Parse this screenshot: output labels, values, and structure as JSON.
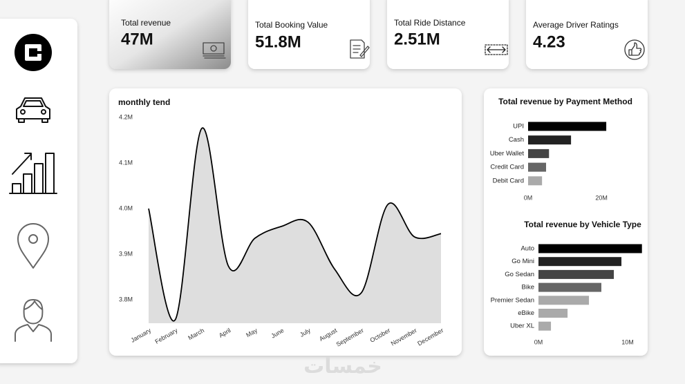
{
  "cards": [
    {
      "title": "Total revenue",
      "value": "47M"
    },
    {
      "title": "Total Booking Value",
      "value": "51.8M"
    },
    {
      "title": "Total Ride Distance",
      "value": "2.51M"
    },
    {
      "title": "Average Driver Ratings",
      "value": "4.23"
    }
  ],
  "watermark": "خمسات",
  "chart_data": [
    {
      "type": "line",
      "title": "monthly tend",
      "categories": [
        "January",
        "February",
        "March",
        "April",
        "May",
        "June",
        "July",
        "August",
        "September",
        "October",
        "November",
        "December"
      ],
      "series": [
        {
          "name": "Total revenue",
          "color": "#000000",
          "fill": "#dedede",
          "values": [
            4000000,
            3756000,
            4176000,
            3874000,
            3935000,
            3961000,
            3970000,
            3867000,
            3815000,
            4009000,
            3938000,
            3945000
          ]
        }
      ],
      "ylim": [
        3748500,
        4200000
      ],
      "yticks": [
        {
          "value": 3800000,
          "label": "3.8M"
        },
        {
          "value": 3900000,
          "label": "3.9M"
        },
        {
          "value": 4000000,
          "label": "4.0M"
        },
        {
          "value": 4100000,
          "label": "4.1M"
        },
        {
          "value": 4200000,
          "label": "4.2M"
        }
      ],
      "grid": false
    },
    {
      "type": "bar",
      "orientation": "horizontal",
      "title": "Total revenue by Payment Method",
      "categories": [
        "UPI",
        "Cash",
        "Uber Wallet",
        "Credit Card",
        "Debit Card"
      ],
      "values": [
        21300000,
        11700000,
        5700000,
        4900000,
        3800000
      ],
      "colors": [
        "#000000",
        "#222222",
        "#444444",
        "#666666",
        "#aaaaaa"
      ],
      "xlim": [
        0,
        27500000
      ],
      "xticks": [
        {
          "value": 0,
          "label": "0M"
        },
        {
          "value": 20000000,
          "label": "20M"
        }
      ]
    },
    {
      "type": "bar",
      "orientation": "horizontal",
      "title": "Total revenue by Vehicle Type",
      "categories": [
        "Auto",
        "Go Mini",
        "Go Sedan",
        "Bike",
        "Premier Sedan",
        "eBike",
        "Uber XL"
      ],
      "values": [
        11600000,
        9300000,
        8450000,
        7050000,
        5660000,
        3260000,
        1400000
      ],
      "colors": [
        "#000000",
        "#222222",
        "#444444",
        "#666666",
        "#aaaaaa",
        "#aaaaaa",
        "#aaaaaa"
      ],
      "xlim": [
        0,
        11700000
      ],
      "xticks": [
        {
          "value": 0,
          "label": "0M"
        },
        {
          "value": 10000000,
          "label": "10M"
        }
      ]
    }
  ]
}
